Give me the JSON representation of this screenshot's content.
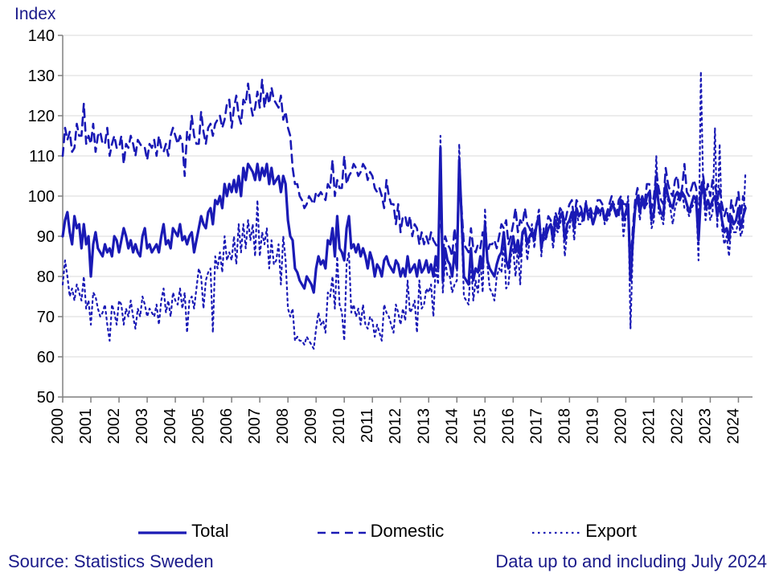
{
  "chart": {
    "type": "line",
    "title": null,
    "ylabel": "Index",
    "ylim": [
      50,
      140
    ],
    "ytick_step": 10,
    "x_categories": [
      "2000",
      "2001",
      "2002",
      "2003",
      "2004",
      "2005",
      "2006",
      "2007",
      "2008",
      "2009",
      "2010",
      "2011",
      "2012",
      "2013",
      "2014",
      "2015",
      "2016",
      "2017",
      "2018",
      "2019",
      "2020",
      "2021",
      "2022",
      "2023",
      "2024"
    ],
    "x_points_last_year": 7,
    "background_color": "#ffffff",
    "grid_color": "#e0e0e0",
    "axis_color": "#808080",
    "tick_font_size": 20,
    "tick_color": "#000000",
    "label_color": "#1a1a8a",
    "label_font_size": 21,
    "series": [
      {
        "name": "Total",
        "color": "#1a1ab5",
        "dash": "solid",
        "width": 3.2,
        "values": [
          90,
          94,
          96,
          91,
          88,
          95,
          92,
          93,
          87,
          93,
          88,
          90,
          80,
          88,
          91,
          87,
          86,
          85,
          88,
          86,
          87,
          85,
          90,
          89,
          86,
          89,
          92,
          90,
          87,
          89,
          86,
          88,
          86,
          85,
          90,
          92,
          87,
          88,
          86,
          87,
          88,
          86,
          90,
          93,
          88,
          89,
          87,
          92,
          91,
          90,
          93,
          89,
          90,
          88,
          90,
          91,
          86,
          89,
          92,
          95,
          93,
          92,
          96,
          97,
          93,
          99,
          98,
          100,
          97,
          103,
          100,
          103,
          101,
          104,
          101,
          105,
          100,
          107,
          104,
          108,
          107,
          106,
          104,
          108,
          104,
          107,
          105,
          108,
          103,
          107,
          103,
          104,
          105,
          101,
          105,
          103,
          94,
          90,
          89,
          82,
          81,
          79,
          78,
          77,
          80,
          79,
          78,
          76,
          82,
          85,
          83,
          84,
          82,
          89,
          88,
          92,
          85,
          95,
          87,
          86,
          84,
          92,
          95,
          87,
          88,
          86,
          88,
          85,
          87,
          85,
          82,
          86,
          84,
          80,
          83,
          82,
          80,
          84,
          85,
          83,
          82,
          81,
          84,
          83,
          80,
          82,
          80,
          85,
          81,
          82,
          83,
          80,
          84,
          81,
          82,
          84,
          81,
          83,
          80,
          85,
          82,
          112,
          79,
          87,
          84,
          83,
          80,
          86,
          82,
          109,
          95,
          80,
          79,
          78,
          87,
          79,
          82,
          81,
          85,
          82,
          93,
          84,
          82,
          81,
          80,
          83,
          85,
          86,
          91,
          84,
          82,
          87,
          90,
          86,
          89,
          85,
          91,
          92,
          88,
          90,
          91,
          89,
          93,
          95,
          87,
          91,
          90,
          92,
          93,
          89,
          94,
          92,
          95,
          96,
          89,
          93,
          94,
          96,
          92,
          97,
          95,
          96,
          94,
          98,
          95,
          96,
          93,
          95,
          97,
          96,
          97,
          94,
          95,
          96,
          98,
          97,
          95,
          96,
          99,
          94,
          96,
          98,
          79,
          89,
          97,
          100,
          96,
          99,
          97,
          100,
          101,
          94,
          96,
          103,
          98,
          96,
          95,
          103,
          100,
          98,
          97,
          100,
          101,
          99,
          101,
          100,
          98,
          96,
          98,
          100,
          99,
          89,
          100,
          103,
          97,
          99,
          97,
          99,
          100,
          95,
          98,
          94,
          91,
          92,
          89,
          95,
          93,
          94,
          97,
          92,
          95,
          97
        ]
      },
      {
        "name": "Domestic",
        "color": "#1a1ab5",
        "dash": "dash",
        "width": 2.6,
        "values": [
          110,
          117,
          114,
          116,
          111,
          112,
          118,
          115,
          115,
          123,
          113,
          115,
          113,
          118,
          111,
          115,
          116,
          113,
          113,
          117,
          110,
          113,
          115,
          112,
          112,
          115,
          108,
          113,
          112,
          115,
          113,
          110,
          114,
          113,
          112,
          112,
          109,
          113,
          112,
          114,
          110,
          115,
          112,
          111,
          113,
          110,
          115,
          117,
          115,
          113,
          115,
          113,
          105,
          116,
          114,
          120,
          115,
          113,
          113,
          121,
          116,
          113,
          117,
          118,
          115,
          118,
          119,
          120,
          117,
          119,
          123,
          124,
          117,
          122,
          125,
          120,
          118,
          124,
          123,
          128,
          123,
          120,
          122,
          126,
          122,
          129,
          122,
          126,
          123,
          127,
          124,
          123,
          122,
          125,
          119,
          121,
          117,
          115,
          107,
          103,
          103,
          100,
          99,
          97,
          98,
          100,
          99,
          98,
          101,
          100,
          101,
          100,
          99,
          103,
          102,
          109,
          100,
          104,
          102,
          102,
          110,
          103,
          105,
          106,
          108,
          107,
          105,
          106,
          108,
          107,
          104,
          106,
          105,
          102,
          101,
          102,
          100,
          97,
          104,
          100,
          98,
          98,
          93,
          98,
          91,
          95,
          95,
          92,
          95,
          90,
          93,
          92,
          88,
          91,
          88,
          90,
          88,
          91,
          89,
          88,
          87,
          97,
          86,
          90,
          88,
          87,
          85,
          92,
          86,
          106,
          97,
          88,
          87,
          86,
          92,
          87,
          86,
          88,
          87,
          91,
          89,
          86,
          88,
          88,
          89,
          87,
          90,
          93,
          92,
          94,
          88,
          90,
          93,
          97,
          91,
          94,
          93,
          97,
          93,
          92,
          90,
          91,
          93,
          93,
          91,
          89,
          92,
          95,
          94,
          91,
          96,
          94,
          97,
          96,
          93,
          96,
          98,
          99,
          94,
          99,
          98,
          97,
          94,
          98,
          96,
          97,
          95,
          96,
          99,
          99,
          98,
          94,
          96,
          98,
          100,
          97,
          95,
          99,
          100,
          98,
          98,
          95,
          83,
          92,
          99,
          102,
          98,
          100,
          98,
          103,
          103,
          97,
          100,
          106,
          102,
          99,
          98,
          107,
          103,
          101,
          100,
          104,
          105,
          99,
          102,
          108,
          101,
          100,
          102,
          104,
          102,
          94,
          102,
          105,
          100,
          103,
          100,
          104,
          103,
          99,
          102,
          98,
          95,
          97,
          93,
          99,
          96,
          98,
          101,
          95,
          100,
          97
        ]
      },
      {
        "name": "Export",
        "color": "#1a1ab5",
        "dash": "dot",
        "width": 2.2,
        "values": [
          78,
          84,
          80,
          75,
          77,
          74,
          78,
          76,
          74,
          80,
          72,
          74,
          68,
          76,
          75,
          72,
          70,
          71,
          73,
          68,
          64,
          73,
          71,
          68,
          74,
          73,
          68,
          72,
          70,
          74,
          70,
          67,
          72,
          70,
          75,
          73,
          70,
          72,
          71,
          70,
          73,
          68,
          74,
          77,
          71,
          74,
          70,
          76,
          74,
          73,
          77,
          72,
          76,
          66,
          74,
          75,
          72,
          77,
          82,
          80,
          72,
          79,
          81,
          82,
          66,
          85,
          82,
          86,
          81,
          90,
          84,
          86,
          84,
          90,
          83,
          93,
          86,
          93,
          87,
          94,
          89,
          93,
          85,
          99,
          85,
          91,
          88,
          92,
          82,
          89,
          83,
          84,
          88,
          78,
          90,
          84,
          72,
          70,
          72,
          64,
          65,
          64,
          64,
          63,
          65,
          64,
          63,
          62,
          67,
          71,
          68,
          69,
          66,
          76,
          75,
          80,
          72,
          85,
          73,
          71,
          64,
          83,
          86,
          71,
          73,
          70,
          72,
          68,
          73,
          68,
          67,
          70,
          69,
          65,
          68,
          66,
          64,
          73,
          71,
          70,
          68,
          66,
          73,
          71,
          68,
          72,
          69,
          79,
          71,
          72,
          74,
          66,
          79,
          72,
          73,
          77,
          76,
          78,
          70,
          83,
          78,
          115,
          76,
          84,
          80,
          80,
          76,
          78,
          79,
          113,
          93,
          75,
          74,
          73,
          84,
          74,
          79,
          76,
          84,
          76,
          97,
          83,
          77,
          76,
          74,
          80,
          82,
          81,
          89,
          77,
          78,
          85,
          87,
          80,
          87,
          78,
          90,
          92,
          84,
          89,
          93,
          87,
          93,
          97,
          85,
          92,
          89,
          92,
          93,
          87,
          92,
          91,
          93,
          96,
          85,
          91,
          92,
          96,
          89,
          96,
          93,
          93,
          95,
          99,
          94,
          95,
          93,
          95,
          96,
          95,
          97,
          93,
          94,
          95,
          97,
          98,
          95,
          95,
          99,
          90,
          95,
          100,
          67,
          87,
          96,
          100,
          94,
          100,
          97,
          98,
          99,
          92,
          94,
          110,
          96,
          95,
          93,
          100,
          99,
          97,
          93,
          97,
          99,
          100,
          101,
          97,
          97,
          95,
          97,
          98,
          99,
          84,
          131,
          102,
          94,
          99,
          94,
          96,
          117,
          92,
          113,
          92,
          88,
          90,
          85,
          93,
          91,
          91,
          94,
          90,
          92,
          106
        ]
      }
    ]
  },
  "legend": {
    "items": [
      "Total",
      "Domestic",
      "Export"
    ],
    "styles": [
      "solid",
      "dash",
      "dot"
    ],
    "color": "#1a1ab5"
  },
  "footer": {
    "source": "Source: Statistics Sweden",
    "note": "Data up to and including July 2024"
  }
}
